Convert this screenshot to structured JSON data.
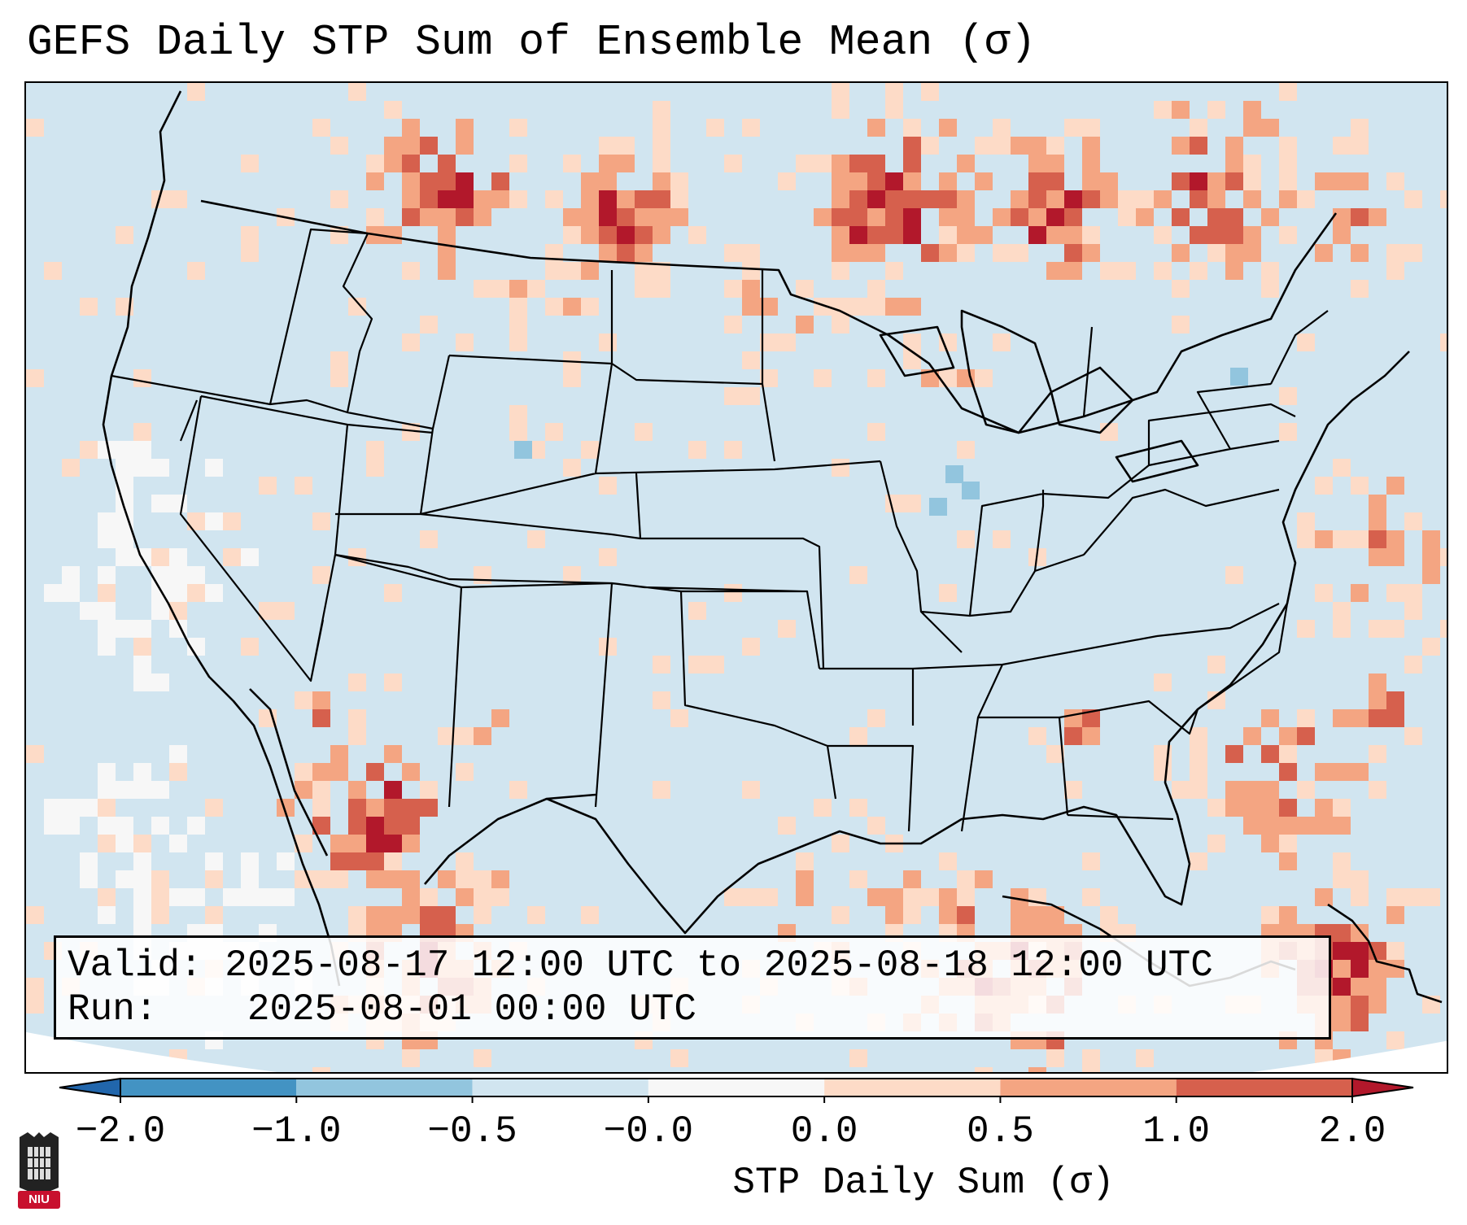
{
  "title": "GEFS Daily STP Sum of Ensemble Mean (σ)",
  "info": {
    "valid_label": "Valid:",
    "valid_value": "2025-08-17 12:00 UTC to 2025-08-18 12:00 UTC",
    "run_label": "Run:",
    "run_value": "2025-08-01 00:00 UTC"
  },
  "colorbar": {
    "label": "STP Daily Sum (σ)",
    "ticks": [
      "−2.0",
      "−1.0",
      "−0.5",
      "−0.0",
      "0.0",
      "0.5",
      "1.0",
      "2.0"
    ],
    "colors": [
      "#4393c3",
      "#92c5de",
      "#d1e5f0",
      "#f7f7f7",
      "#fddbc7",
      "#f4a582",
      "#d6604d",
      "#b2182b"
    ],
    "extend": "both"
  },
  "logo": {
    "name": "niu-logo",
    "text": "NIU",
    "color": "#c8102e"
  },
  "map": {
    "projection": "lambert-conformal",
    "region": "CONUS",
    "ocean_color": "#d1e5f0",
    "land_color": "#d1e5f0",
    "no_data_color": "#ffffff",
    "outline_color": "#000000"
  }
}
